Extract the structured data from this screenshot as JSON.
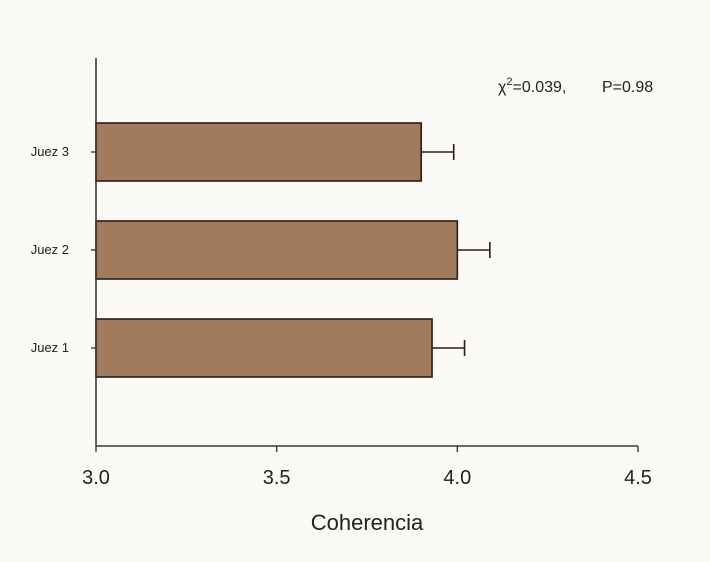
{
  "chart_data": {
    "type": "bar",
    "orientation": "horizontal",
    "categories": [
      "Juez 1",
      "Juez 2",
      "Juez 3"
    ],
    "values": [
      3.93,
      4.0,
      3.9
    ],
    "errors": [
      0.09,
      0.09,
      0.09
    ],
    "xlim": [
      3.0,
      4.5
    ],
    "xticks": [
      "3.0",
      "3.5",
      "4.0",
      "4.5"
    ],
    "xlabel": "Coherencia",
    "ylabel": "",
    "title": "",
    "grid": false,
    "bar_color": "#a27b5f",
    "annotation": {
      "chi_symbol": "χ",
      "chi_exponent": "2",
      "chi_value": "=0.039,",
      "p_text": "P=0.98"
    }
  }
}
